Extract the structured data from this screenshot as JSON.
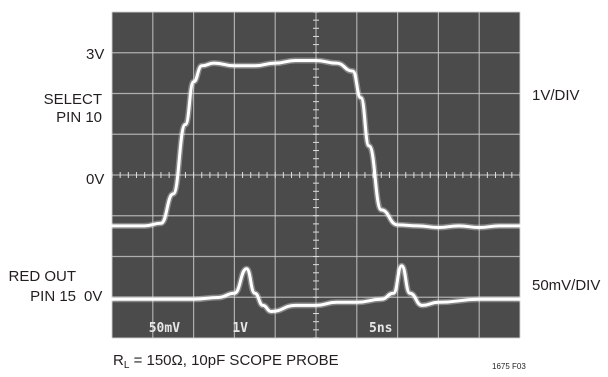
{
  "chart_data": {
    "type": "line",
    "title": "",
    "grid": true,
    "x_divisions": 10,
    "y_divisions": 8,
    "x_timebase": "5ns",
    "channels": [
      {
        "name": "SELECT PIN 10",
        "name_lines": [
          "SELECT",
          "PIN 10"
        ],
        "scale": "1V/DIV",
        "level_labels": {
          "high": "3V",
          "zero": "0V"
        },
        "high_volts": 3,
        "x": [
          0,
          0.8,
          1.2,
          1.5,
          1.8,
          2.0,
          2.2,
          2.5,
          3.0,
          3.5,
          4.0,
          4.5,
          5.0,
          5.5,
          5.9,
          6.1,
          6.3,
          6.6,
          7.0,
          7.5,
          8.0,
          8.5,
          9.0,
          9.5,
          10
        ],
        "y": [
          0,
          0,
          0.05,
          0.6,
          1.9,
          2.7,
          3.0,
          3.05,
          3.0,
          3.0,
          3.05,
          3.1,
          3.1,
          3.05,
          2.9,
          2.4,
          1.5,
          0.3,
          0.02,
          0,
          -0.03,
          0,
          -0.03,
          0,
          0
        ]
      },
      {
        "name": "RED OUT PIN 15",
        "name_lines": [
          "RED OUT",
          "PIN 15"
        ],
        "scale": "50mV/DIV",
        "level_labels": {
          "zero": "0V"
        },
        "x": [
          0,
          1.0,
          2.0,
          2.6,
          3.0,
          3.3,
          3.5,
          3.7,
          3.9,
          4.5,
          5.0,
          5.5,
          6.0,
          6.6,
          6.9,
          7.1,
          7.3,
          7.6,
          8.0,
          9.0,
          10
        ],
        "y": [
          0,
          0,
          0,
          3,
          10,
          50,
          10,
          -10,
          -20,
          -10,
          -10,
          -5,
          -5,
          0,
          10,
          55,
          10,
          -10,
          -5,
          0,
          0
        ]
      }
    ],
    "screen_readouts": [
      "50mV",
      "1V",
      "5ns"
    ],
    "caption": {
      "prefix": "R",
      "sub": "L",
      "rest": " = 150Ω, 10pF SCOPE PROBE"
    },
    "figure_id": "1675 F03"
  }
}
